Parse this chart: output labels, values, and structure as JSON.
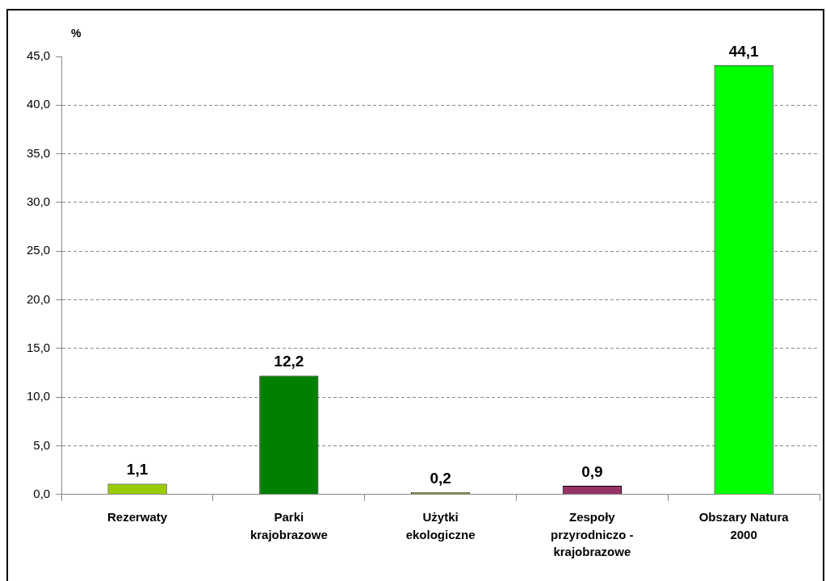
{
  "chart_data": {
    "type": "bar",
    "ylabel": "%",
    "categories": [
      "Rezerwaty",
      "Parki krajobrazowe",
      "Użytki ekologiczne",
      "Zespoły przyrodniczo - krajobrazowe",
      "Obszary Natura 2000"
    ],
    "values": [
      1.1,
      12.2,
      0.2,
      0.9,
      44.1
    ],
    "colors": [
      "#99cc00",
      "#008000",
      "#808000",
      "#993366",
      "#00ff00"
    ],
    "value_labels": [
      "1,1",
      "12,2",
      "0,2",
      "0,9",
      "44,1"
    ],
    "ylim": [
      0,
      45
    ],
    "yticks": [
      {
        "value": 0,
        "label": "0,0"
      },
      {
        "value": 5,
        "label": "5,0"
      },
      {
        "value": 10,
        "label": "10,0"
      },
      {
        "value": 15,
        "label": "15,0"
      },
      {
        "value": 20,
        "label": "20,0"
      },
      {
        "value": 25,
        "label": "25,0"
      },
      {
        "value": 30,
        "label": "30,0"
      },
      {
        "value": 35,
        "label": "35,0"
      },
      {
        "value": 40,
        "label": "40,0"
      },
      {
        "value": 45,
        "label": "45,0"
      }
    ],
    "grid": "y",
    "legend": false
  }
}
